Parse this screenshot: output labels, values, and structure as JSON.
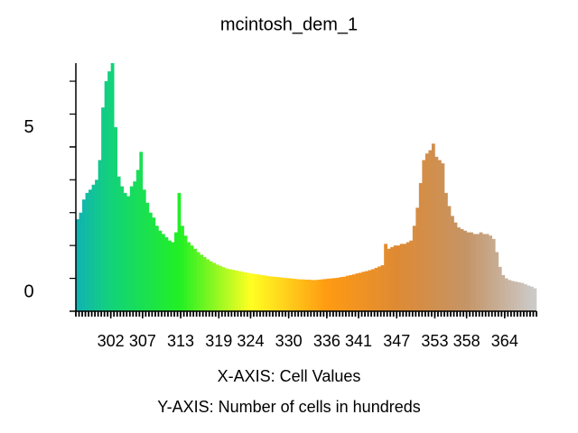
{
  "chart_data": {
    "type": "histogram",
    "title": "mcintosh_dem_1",
    "x_label": "X-AXIS: Cell Values",
    "y_label": "Y-AXIS: Number of cells in hundreds",
    "xlim": [
      296.5,
      369
    ],
    "ylim": [
      0,
      7.55
    ],
    "xticks": [
      302,
      307,
      313,
      319,
      324,
      330,
      336,
      341,
      347,
      353,
      358,
      364
    ],
    "yticks": [
      0,
      5
    ],
    "yminorticks": [
      1,
      2,
      3,
      4,
      6,
      7
    ],
    "color_stops": [
      {
        "value": 296.5,
        "color": "#10b2b4"
      },
      {
        "value": 302,
        "color": "#12d27a"
      },
      {
        "value": 313,
        "color": "#22f022"
      },
      {
        "value": 324,
        "color": "#ffff22"
      },
      {
        "value": 336,
        "color": "#ff9a12"
      },
      {
        "value": 347,
        "color": "#de8a34"
      },
      {
        "value": 358,
        "color": "#c49466"
      },
      {
        "value": 369,
        "color": "#cccccc"
      }
    ],
    "bins": [
      296.5,
      297,
      297.5,
      298,
      298.5,
      299,
      299.5,
      300,
      300.5,
      301,
      301.5,
      302,
      302.5,
      303,
      303.5,
      304,
      304.5,
      305,
      305.5,
      306,
      306.5,
      307,
      307.5,
      308,
      308.5,
      309,
      309.5,
      310,
      310.5,
      311,
      311.5,
      312,
      312.5,
      313,
      313.5,
      314,
      314.5,
      315,
      315.5,
      316,
      316.5,
      317,
      317.5,
      318,
      318.5,
      319,
      319.5,
      320,
      320.5,
      321,
      321.5,
      322,
      322.5,
      323,
      323.5,
      324,
      324.5,
      325,
      325.5,
      326,
      326.5,
      327,
      327.5,
      328,
      328.5,
      329,
      329.5,
      330,
      330.5,
      331,
      331.5,
      332,
      332.5,
      333,
      333.5,
      334,
      334.5,
      335,
      335.5,
      336,
      336.5,
      337,
      337.5,
      338,
      338.5,
      339,
      339.5,
      340,
      340.5,
      341,
      341.5,
      342,
      342.5,
      343,
      343.5,
      344,
      344.5,
      345,
      345.5,
      346,
      346.5,
      347,
      347.5,
      348,
      348.5,
      349,
      349.5,
      350,
      350.5,
      351,
      351.5,
      352,
      352.5,
      353,
      353.5,
      354,
      354.5,
      355,
      355.5,
      356,
      356.5,
      357,
      357.5,
      358,
      358.5,
      359,
      359.5,
      360,
      360.5,
      361,
      361.5,
      362,
      362.5,
      363,
      363.5,
      364,
      364.5,
      365,
      365.5,
      366,
      366.5,
      367,
      367.5,
      368,
      368.5,
      369
    ],
    "values": [
      2.8,
      3.0,
      3.4,
      3.6,
      3.7,
      3.85,
      4.0,
      4.6,
      6.2,
      7.0,
      7.3,
      7.55,
      5.6,
      4.1,
      3.8,
      3.6,
      3.5,
      3.8,
      3.95,
      4.3,
      4.85,
      3.7,
      3.3,
      3.0,
      2.85,
      2.6,
      2.45,
      2.35,
      2.25,
      2.15,
      2.1,
      2.4,
      3.6,
      2.6,
      2.3,
      2.1,
      2.0,
      1.9,
      1.8,
      1.72,
      1.65,
      1.58,
      1.52,
      1.47,
      1.42,
      1.38,
      1.34,
      1.3,
      1.28,
      1.26,
      1.24,
      1.22,
      1.2,
      1.18,
      1.16,
      1.15,
      1.13,
      1.12,
      1.1,
      1.09,
      1.07,
      1.06,
      1.05,
      1.04,
      1.03,
      1.02,
      1.01,
      1.0,
      0.99,
      0.98,
      0.97,
      0.97,
      0.96,
      0.96,
      0.95,
      0.95,
      0.96,
      0.97,
      0.98,
      0.99,
      1.0,
      1.01,
      1.02,
      1.04,
      1.05,
      1.08,
      1.1,
      1.12,
      1.15,
      1.17,
      1.2,
      1.22,
      1.25,
      1.28,
      1.32,
      1.36,
      1.4,
      2.05,
      1.9,
      1.95,
      2.0,
      2.0,
      2.05,
      2.05,
      2.1,
      2.15,
      2.6,
      3.15,
      3.9,
      4.6,
      4.8,
      4.9,
      5.1,
      4.7,
      4.6,
      4.5,
      3.6,
      3.2,
      2.9,
      2.7,
      2.55,
      2.5,
      2.45,
      2.4,
      2.4,
      2.35,
      2.35,
      2.4,
      2.35,
      2.35,
      2.3,
      2.2,
      1.8,
      1.35,
      1.1,
      1.0,
      0.95,
      0.92,
      0.9,
      0.88,
      0.86,
      0.82,
      0.78,
      0.75,
      0.7
    ]
  }
}
